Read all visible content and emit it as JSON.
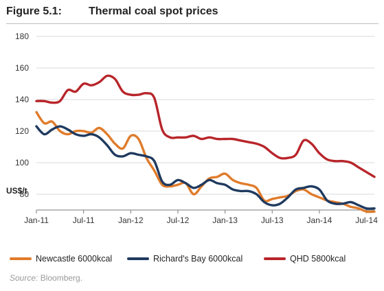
{
  "figure": {
    "number": "Figure 5.1:",
    "title": "Thermal coal spot prices"
  },
  "source": {
    "label": "Source:",
    "text": " Bloomberg."
  },
  "chart_data": {
    "type": "line",
    "title": "Thermal coal spot prices",
    "ylabel": "US$/t",
    "xlabel": "",
    "ylim": [
      70,
      180
    ],
    "yticks": [
      80,
      100,
      120,
      140,
      160,
      180
    ],
    "xticks": [
      "Jan-11",
      "Jul-11",
      "Jan-12",
      "Jul-12",
      "Jan-13",
      "Jul-13",
      "Jan-14",
      "Jul-14"
    ],
    "grid": "horizontal",
    "legend": "bottom",
    "x": [
      "2011-01",
      "2011-02",
      "2011-03",
      "2011-04",
      "2011-05",
      "2011-06",
      "2011-07",
      "2011-08",
      "2011-09",
      "2011-10",
      "2011-11",
      "2011-12",
      "2012-01",
      "2012-02",
      "2012-03",
      "2012-04",
      "2012-05",
      "2012-06",
      "2012-07",
      "2012-08",
      "2012-09",
      "2012-10",
      "2012-11",
      "2012-12",
      "2013-01",
      "2013-02",
      "2013-03",
      "2013-04",
      "2013-05",
      "2013-06",
      "2013-07",
      "2013-08",
      "2013-09",
      "2013-10",
      "2013-11",
      "2013-12",
      "2014-01",
      "2014-02",
      "2014-03",
      "2014-04",
      "2014-05",
      "2014-06",
      "2014-07",
      "2014-08"
    ],
    "series": [
      {
        "name": "Newcastle 6000kcal",
        "color": "#e07b2a",
        "values": [
          132,
          125,
          126,
          120,
          118,
          120,
          120,
          119,
          122,
          118,
          112,
          109,
          117,
          115,
          103,
          95,
          86,
          85,
          86,
          87,
          80,
          85,
          90,
          91,
          93,
          89,
          87,
          86,
          84,
          76,
          77,
          78,
          79,
          82,
          83,
          80,
          78,
          76,
          75,
          74,
          72,
          71,
          69,
          69
        ]
      },
      {
        "name": "Richard's Bay 6000kcal",
        "color": "#1f3a5f",
        "values": [
          123,
          118,
          121,
          123,
          121,
          118,
          117,
          118,
          116,
          111,
          105,
          104,
          106,
          105,
          104,
          101,
          88,
          86,
          89,
          87,
          84,
          86,
          89,
          87,
          86,
          83,
          82,
          82,
          80,
          75,
          73,
          74,
          78,
          83,
          84,
          85,
          83,
          76,
          74,
          74,
          75,
          73,
          71,
          71
        ]
      },
      {
        "name": "QHD 5800kcal",
        "color": "#b8252a",
        "values": [
          139,
          139,
          138,
          139,
          146,
          145,
          150,
          149,
          151,
          155,
          153,
          145,
          143,
          143,
          144,
          141,
          121,
          116,
          116,
          116,
          117,
          115,
          116,
          115,
          115,
          115,
          114,
          113,
          112,
          110,
          106,
          103,
          103,
          105,
          114,
          112,
          106,
          102,
          101,
          101,
          100,
          97,
          94,
          91
        ]
      }
    ]
  }
}
